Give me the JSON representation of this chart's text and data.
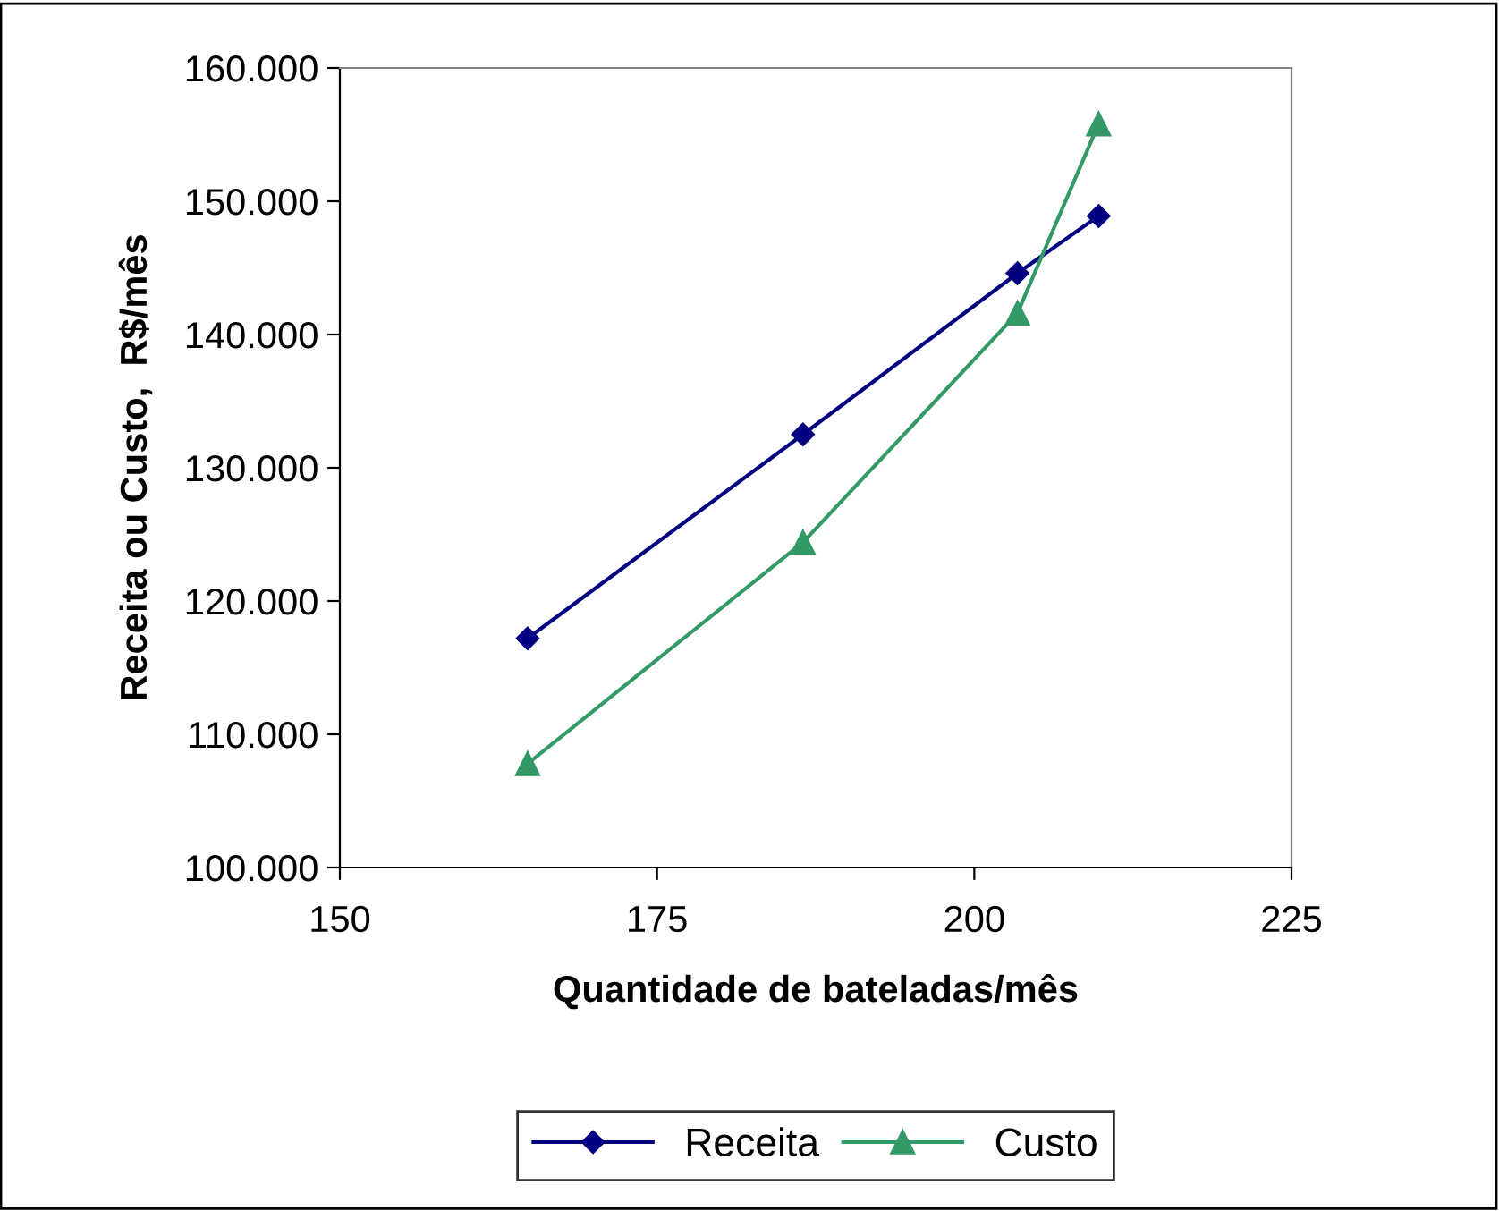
{
  "chart_data": {
    "type": "line",
    "xlabel": "Quantidade de bateladas/mês",
    "ylabel": "Receita ou Custo,  R$/mês",
    "series": [
      {
        "name": "Receita",
        "color": "#000080",
        "marker": "diamond",
        "x": [
          164.8,
          186.5,
          203.4,
          209.8
        ],
        "values": [
          117200,
          132500,
          144600,
          148900
        ]
      },
      {
        "name": "Custo",
        "color": "#339966",
        "marker": "triangle",
        "x": [
          164.8,
          186.5,
          203.4,
          209.8
        ],
        "values": [
          107800,
          124400,
          141600,
          155800
        ]
      }
    ],
    "xlim": [
      150,
      225
    ],
    "xticks": [
      150,
      175,
      200,
      225
    ],
    "ylim": [
      100000,
      160000
    ],
    "yticks": [
      {
        "value": 100000,
        "label": "100.000"
      },
      {
        "value": 110000,
        "label": "110.000"
      },
      {
        "value": 120000,
        "label": "120.000"
      },
      {
        "value": 130000,
        "label": "130.000"
      },
      {
        "value": 140000,
        "label": "140.000"
      },
      {
        "value": 150000,
        "label": "150.000"
      },
      {
        "value": 160000,
        "label": "160.000"
      }
    ],
    "grid": false,
    "legend": "bottom",
    "line_style": "solid"
  }
}
